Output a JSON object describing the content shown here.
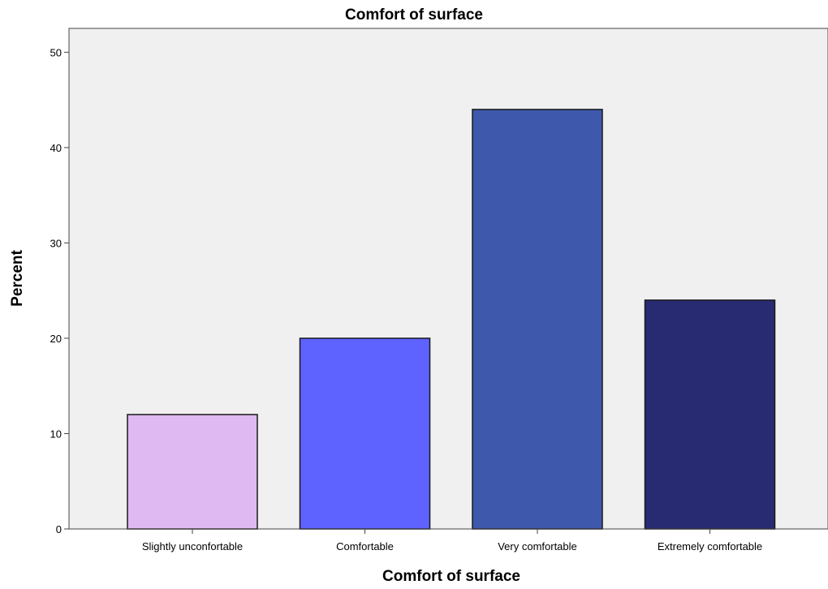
{
  "chart_data": {
    "type": "bar",
    "title": "Comfort of surface",
    "xlabel": "Comfort of surface",
    "ylabel": "Percent",
    "categories": [
      "Slightly unconfortable",
      "Comfortable",
      "Very comfortable",
      "Extremely comfortable"
    ],
    "values": [
      12,
      20,
      44,
      24
    ],
    "bar_colors": [
      "#dfb9f1",
      "#5e62ff",
      "#3e58ac",
      "#282a72"
    ],
    "ylim": [
      0,
      52.5
    ],
    "yticks": [
      0,
      10,
      20,
      30,
      40,
      50
    ],
    "ytick_labels": [
      "0",
      "10",
      "20",
      "30",
      "40",
      "50"
    ],
    "grid": false,
    "colors": {
      "plot_background": "#f0f0f0",
      "bar_edge": "#1a1a1a",
      "axis": "#444444"
    }
  }
}
